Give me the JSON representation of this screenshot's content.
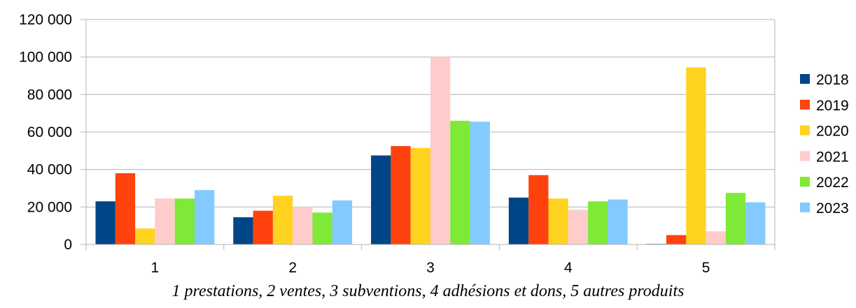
{
  "chart_data": {
    "type": "bar",
    "title": "",
    "xlabel": "1 prestations, 2 ventes, 3 subventions, 4 adhésions et dons, 5 autres produits",
    "ylabel": "",
    "categories": [
      "1",
      "2",
      "3",
      "4",
      "5"
    ],
    "ylim": [
      0,
      120000
    ],
    "yticks": [
      0,
      20000,
      40000,
      60000,
      80000,
      100000,
      120000
    ],
    "ytick_labels": [
      "0",
      "20 000",
      "40 000",
      "60 000",
      "80 000",
      "100 000",
      "120 000"
    ],
    "grid": true,
    "legend_position": "right",
    "series": [
      {
        "name": "2018",
        "color": "#004586",
        "values": [
          23000,
          14500,
          47500,
          25000,
          300
        ]
      },
      {
        "name": "2019",
        "color": "#ff420e",
        "values": [
          38000,
          18000,
          52500,
          37000,
          5000
        ]
      },
      {
        "name": "2020",
        "color": "#ffd320",
        "values": [
          8500,
          26000,
          51500,
          24500,
          94500
        ]
      },
      {
        "name": "2021",
        "color": "#ffcccc",
        "values": [
          24500,
          20000,
          100000,
          18500,
          7000
        ]
      },
      {
        "name": "2022",
        "color": "#7ee937",
        "values": [
          24500,
          17000,
          66000,
          23000,
          27500
        ]
      },
      {
        "name": "2023",
        "color": "#83caff",
        "values": [
          29000,
          23500,
          65500,
          24000,
          22500
        ]
      }
    ]
  }
}
